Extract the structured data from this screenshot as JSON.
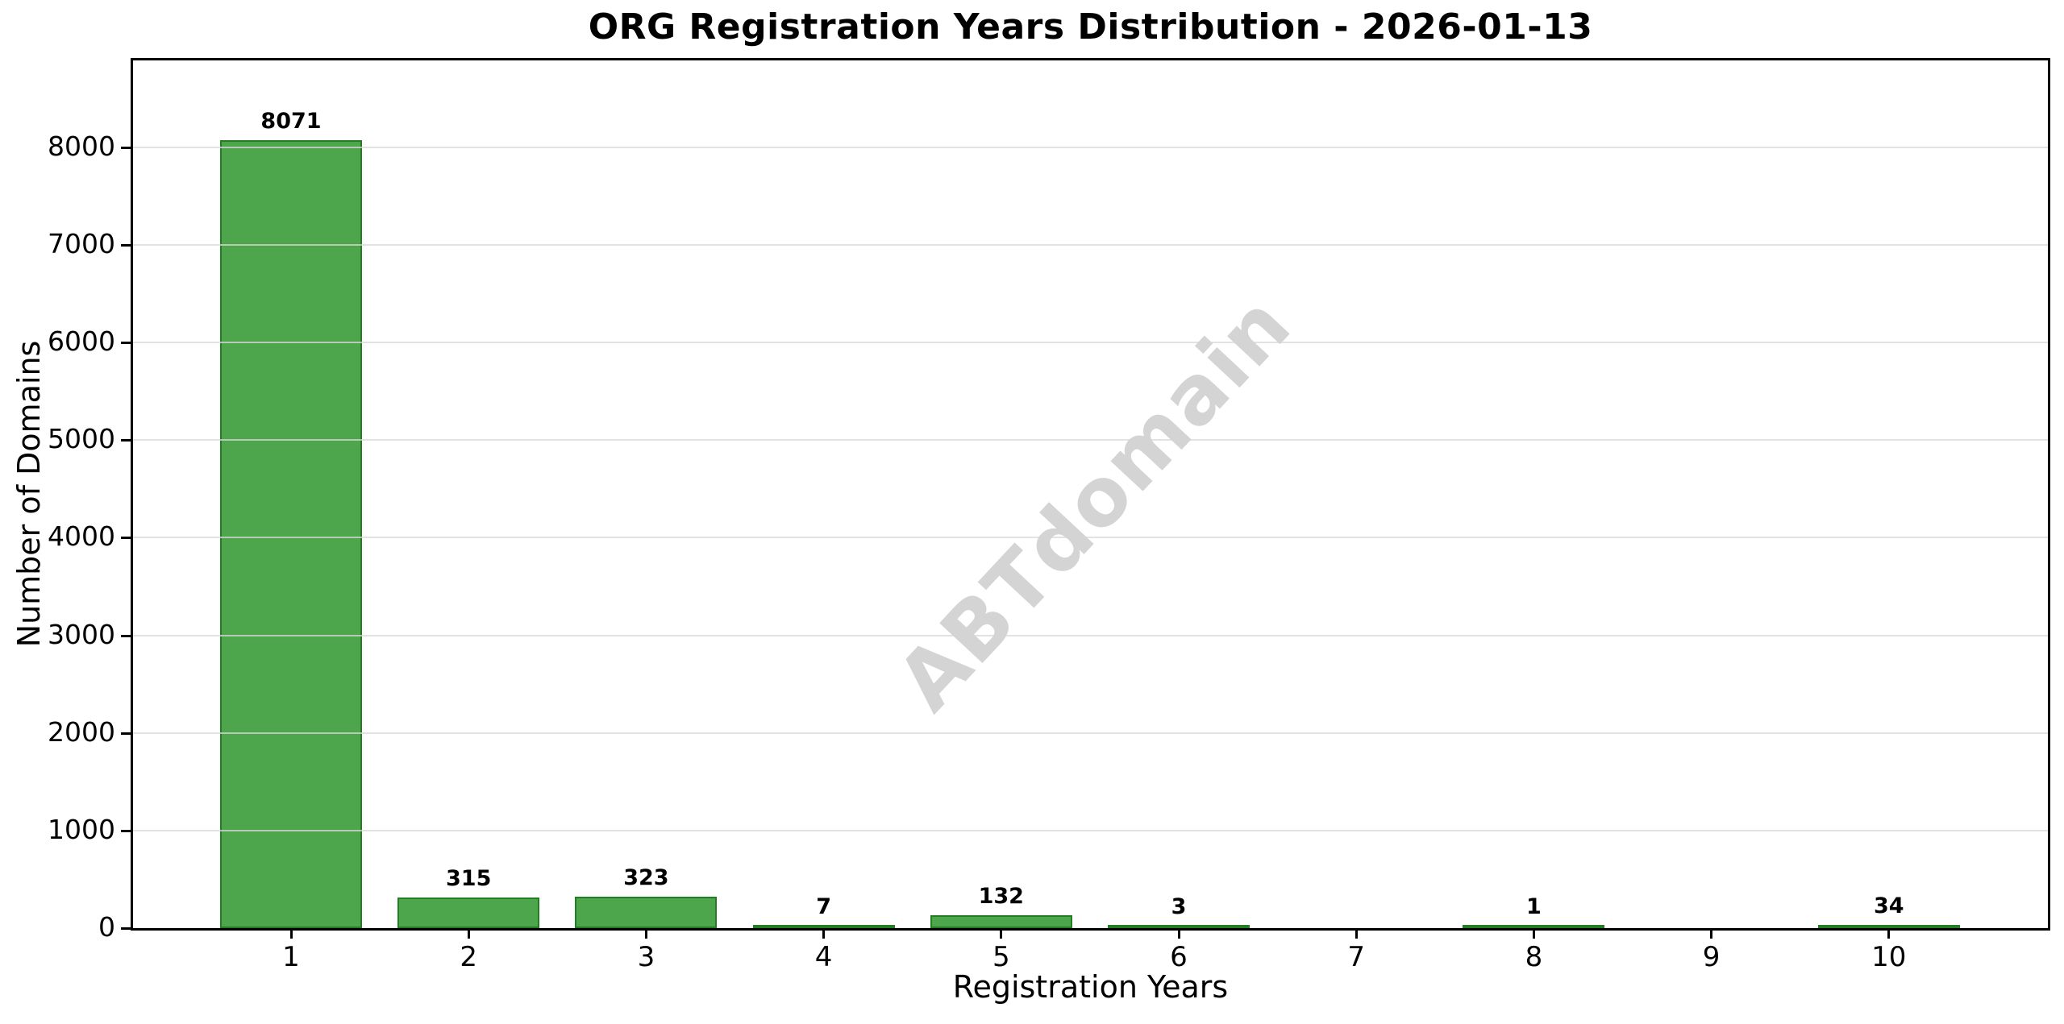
{
  "chart_data": {
    "type": "bar",
    "title": "ORG Registration Years Distribution - 2026-01-13",
    "xlabel": "Registration Years",
    "ylabel": "Number of Domains",
    "categories": [
      "1",
      "2",
      "3",
      "4",
      "5",
      "6",
      "7",
      "8",
      "9",
      "10"
    ],
    "values": [
      8071,
      315,
      323,
      7,
      132,
      3,
      0,
      1,
      0,
      34
    ],
    "bar_value_labels": [
      "8071",
      "315",
      "323",
      "7",
      "132",
      "3",
      "",
      "1",
      "",
      "34"
    ],
    "yticks": [
      0,
      1000,
      2000,
      3000,
      4000,
      5000,
      6000,
      7000,
      8000
    ],
    "ylim": [
      0,
      8891
    ],
    "grid": "horizontal",
    "legend": "none",
    "colors": {
      "bar_fill": "#4DA64C",
      "bar_edge": "#237D23",
      "gridline": "#d8d8d8",
      "axis": "#000000",
      "text": "#000000",
      "watermark": "#d4d4d4",
      "background": "#ffffff"
    },
    "watermark": {
      "text": "ABTdomain",
      "rotation_deg": -47
    }
  }
}
